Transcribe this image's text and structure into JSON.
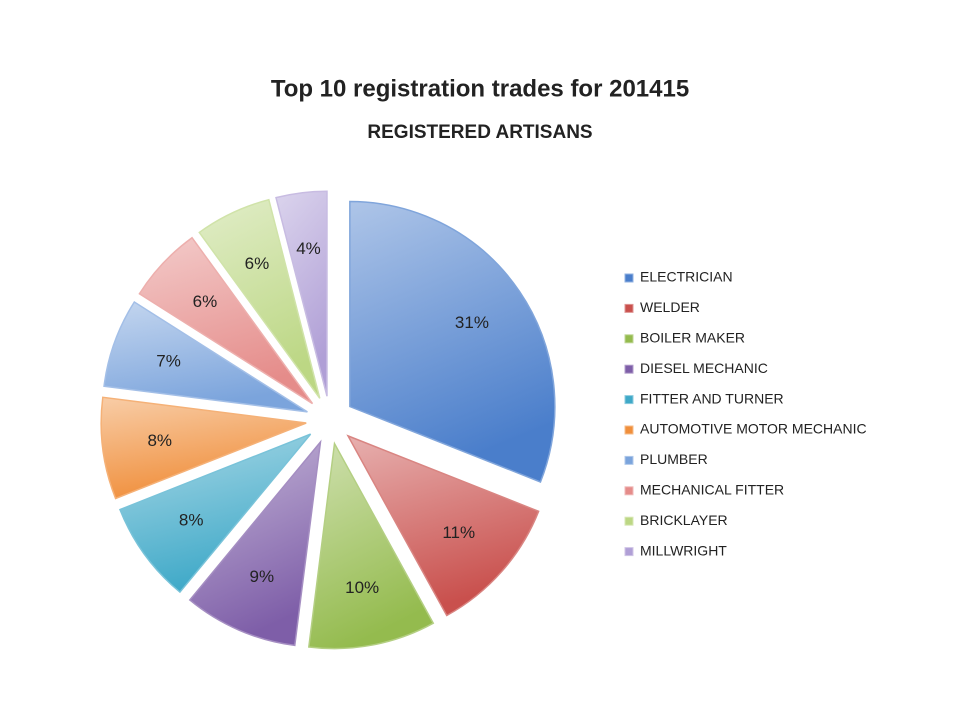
{
  "chart_data": {
    "type": "pie",
    "title": "Top 10 registration trades for 201415",
    "subtitle": "REGISTERED ARTISANS",
    "categories": [
      "ELECTRICIAN",
      "WELDER",
      "BOILER MAKER",
      "DIESEL MECHANIC",
      "FITTER AND TURNER",
      "AUTOMOTIVE MOTOR MECHANIC",
      "PLUMBER",
      "MECHANICAL FITTER",
      "BRICKLAYER",
      "MILLWRIGHT"
    ],
    "values": [
      31,
      11,
      10,
      9,
      8,
      8,
      7,
      6,
      6,
      4
    ],
    "value_labels": [
      "31%",
      "11%",
      "10%",
      "9%",
      "8%",
      "8%",
      "7%",
      "6%",
      "6%",
      "4%"
    ],
    "colors": [
      "#4a7ecb",
      "#c9504d",
      "#94bb4e",
      "#7e5ea8",
      "#3fa9c8",
      "#f08f3c",
      "#7ba4dc",
      "#e58c8a",
      "#bcd784",
      "#b09fd6"
    ],
    "legend": "right"
  }
}
